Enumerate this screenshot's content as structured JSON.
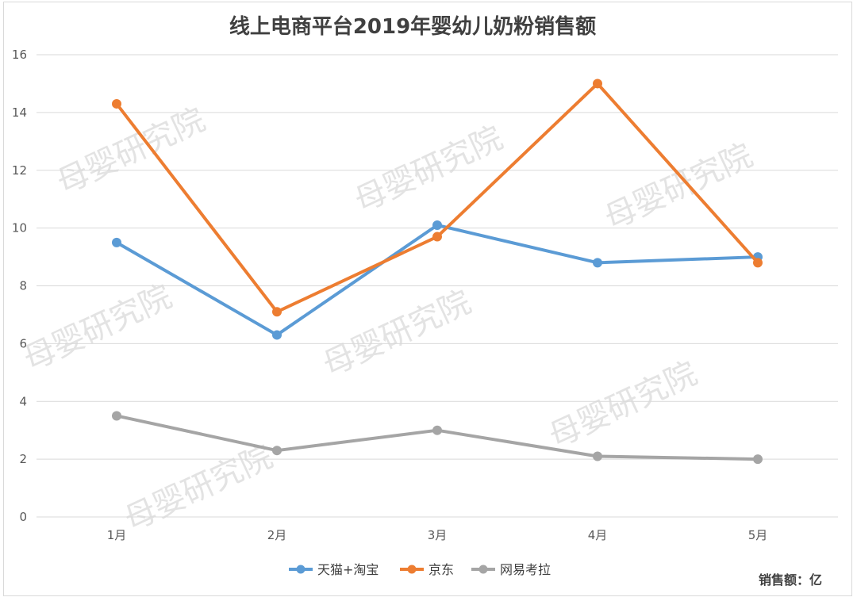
{
  "chart_data": {
    "type": "line",
    "title": "线上电商平台2019年婴幼儿奶粉销售额",
    "categories": [
      "1月",
      "2月",
      "3月",
      "4月",
      "5月"
    ],
    "ylim": [
      0,
      16
    ],
    "yticks": [
      0,
      2,
      4,
      6,
      8,
      10,
      12,
      14,
      16
    ],
    "grid": true,
    "legend_position": "bottom",
    "series": [
      {
        "name": "天猫+淘宝",
        "color": "#5b9bd5",
        "values": [
          9.5,
          6.3,
          10.1,
          8.8,
          9.0
        ]
      },
      {
        "name": "京东",
        "color": "#ed7d31",
        "values": [
          14.3,
          7.1,
          9.7,
          15.0,
          8.8
        ]
      },
      {
        "name": "网易考拉",
        "color": "#a5a5a5",
        "values": [
          3.5,
          2.3,
          3.0,
          2.1,
          2.0
        ]
      }
    ],
    "unit_note": "销售额：亿"
  },
  "watermark": "母婴研究院"
}
